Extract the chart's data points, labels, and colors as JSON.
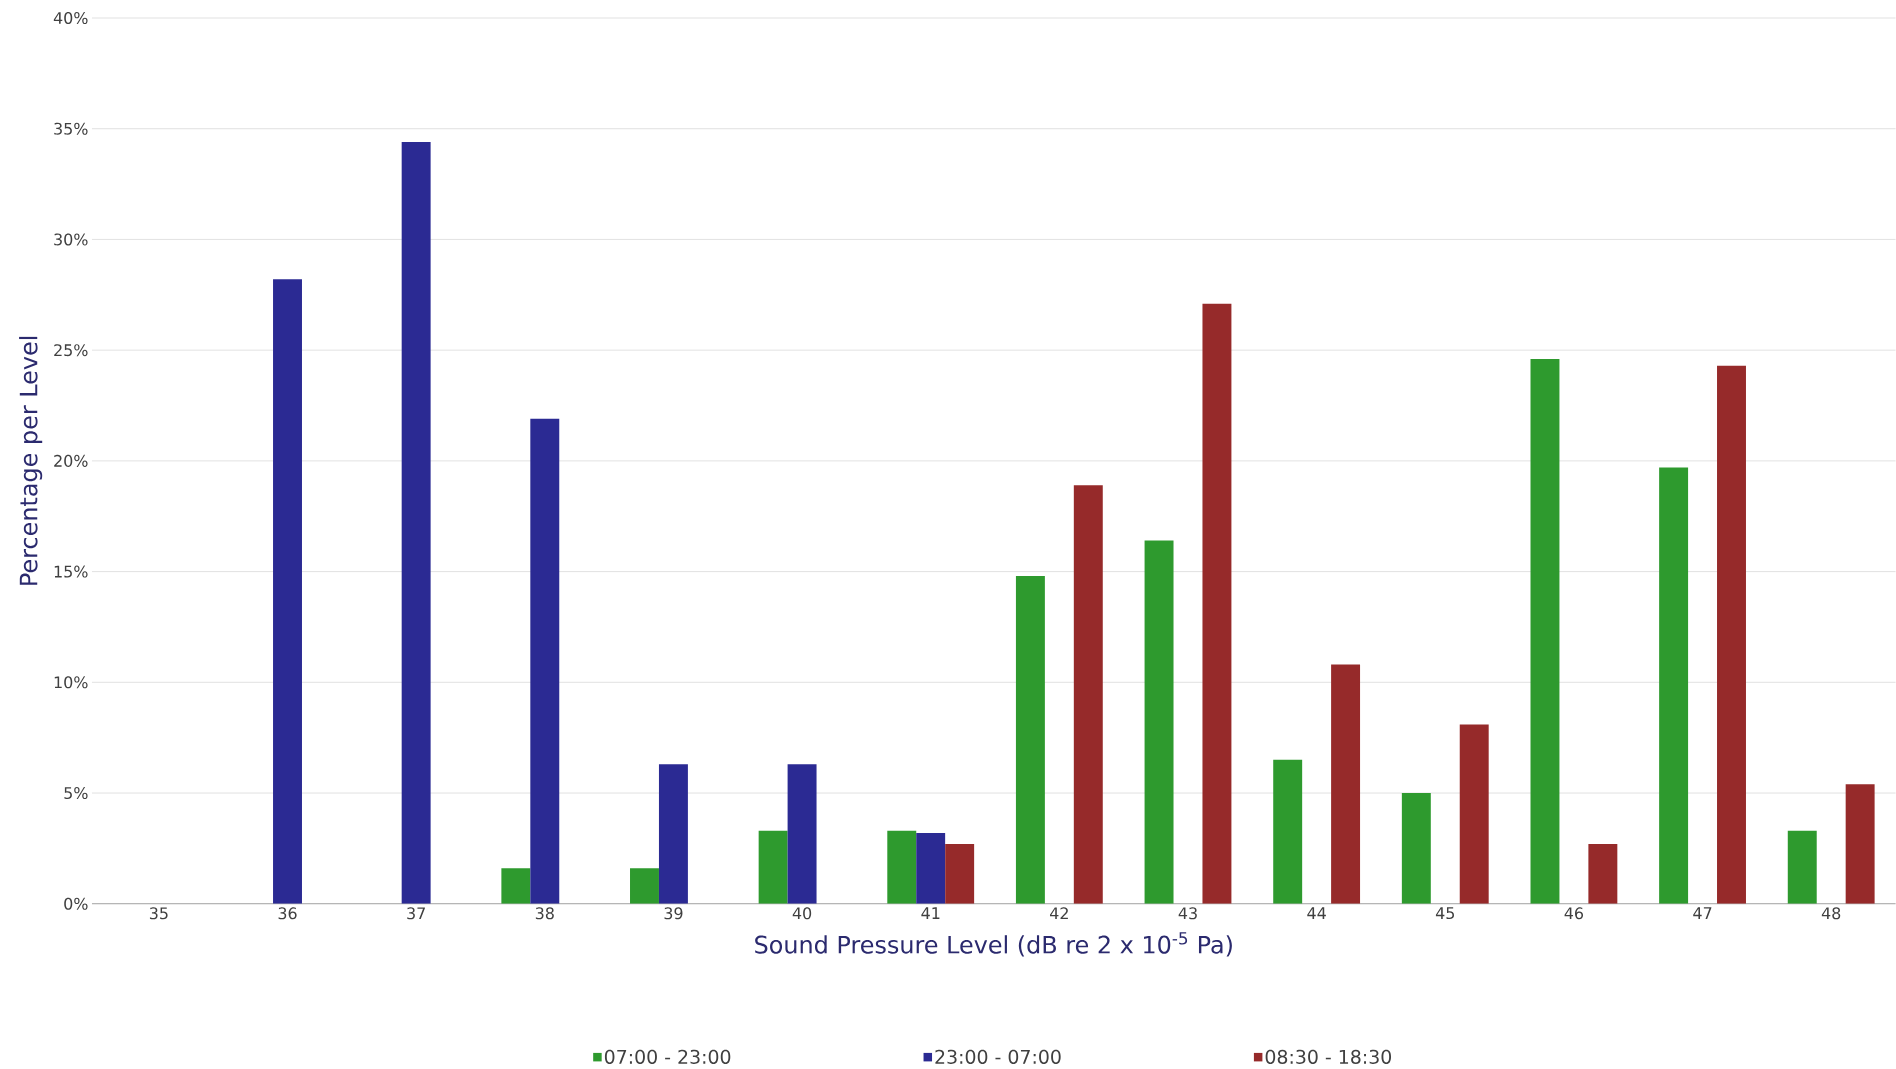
{
  "chart_data": {
    "type": "bar",
    "xlabel": "Sound Pressure Level (dB re 2 x 10$^{-5}$ Pa)",
    "ylabel": "Percentage per Level",
    "categories": [
      "35",
      "36",
      "37",
      "38",
      "39",
      "40",
      "41",
      "42",
      "43",
      "44",
      "45",
      "46",
      "47",
      "48"
    ],
    "series": [
      {
        "name": "07:00 - 23:00",
        "color": "#2e9a2e",
        "values": [
          null,
          null,
          null,
          1.6,
          1.6,
          3.3,
          3.3,
          14.8,
          16.4,
          6.5,
          5.0,
          24.6,
          19.7,
          3.3
        ]
      },
      {
        "name": "23:00 - 07:00",
        "color": "#2b2a93",
        "values": [
          null,
          28.2,
          34.4,
          21.9,
          6.3,
          6.3,
          3.2,
          null,
          null,
          null,
          null,
          null,
          null,
          null
        ]
      },
      {
        "name": "08:30 - 18:30",
        "color": "#962a2a",
        "values": [
          null,
          null,
          null,
          null,
          null,
          null,
          2.7,
          18.9,
          27.1,
          10.8,
          8.1,
          2.7,
          24.3,
          5.4
        ]
      }
    ],
    "ylim": [
      0,
      40
    ],
    "yticks": [
      {
        "value": 0,
        "label": "0%"
      },
      {
        "value": 5,
        "label": "5%"
      },
      {
        "value": 10,
        "label": "10%"
      },
      {
        "value": 15,
        "label": "15%"
      },
      {
        "value": 20,
        "label": "20%"
      },
      {
        "value": 25,
        "label": "25%"
      },
      {
        "value": 30,
        "label": "30%"
      },
      {
        "value": 35,
        "label": "35%"
      },
      {
        "value": 40,
        "label": "40%"
      }
    ],
    "grid": "y",
    "legend": "bottom"
  }
}
